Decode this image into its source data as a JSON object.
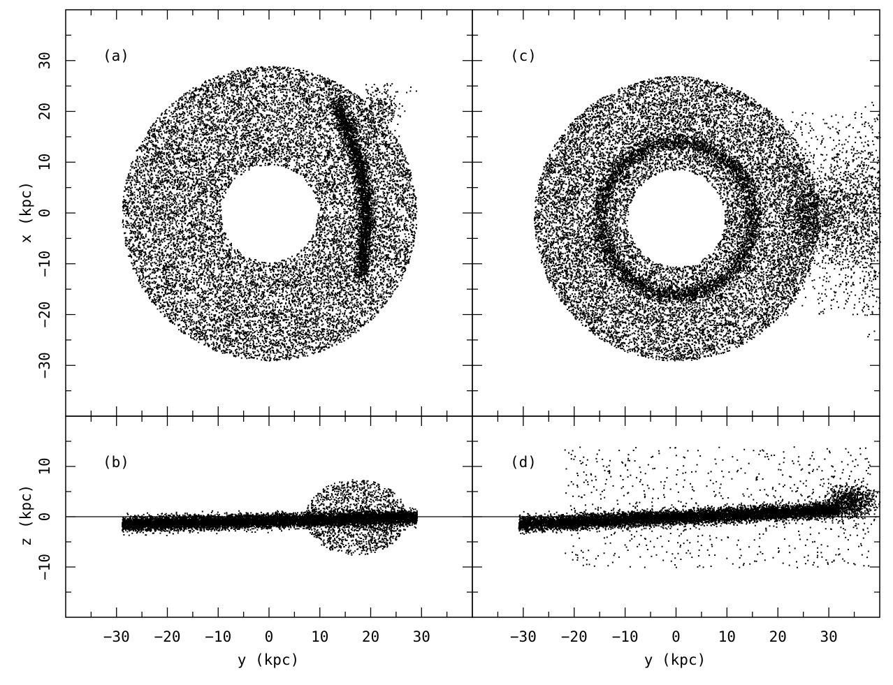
{
  "chart_data": [
    {
      "id": "a",
      "type": "scatter",
      "panel_label": "(a)",
      "view": "face-on",
      "xaxis": "y",
      "yaxis": "x",
      "xlabel": "",
      "ylabel": "x (kpc)",
      "xlim": [
        -40,
        40
      ],
      "ylim": [
        -40,
        40
      ],
      "xticks_labeled": [],
      "yticks_labeled": [
        -30,
        -20,
        -10,
        0,
        10,
        20,
        30
      ],
      "features": {
        "ring": {
          "center": [
            0,
            0
          ],
          "outer_radius": 29,
          "inner_radius": 9.5
        },
        "dense_arm": {
          "from": [
            13,
            22
          ],
          "to": [
            18,
            -12
          ]
        },
        "satellite_clump": {
          "center": [
            22,
            21
          ],
          "extent": [
            [
              17,
              27
            ],
            [
              16,
              26
            ]
          ]
        }
      }
    },
    {
      "id": "b",
      "type": "scatter",
      "panel_label": "(b)",
      "view": "edge-on",
      "xaxis": "y",
      "yaxis": "z",
      "xlabel": "y (kpc)",
      "ylabel": "z (kpc)",
      "xlim": [
        -40,
        40
      ],
      "ylim": [
        -20,
        20
      ],
      "xticks_labeled": [
        -30,
        -20,
        -10,
        0,
        10,
        20,
        30
      ],
      "yticks_labeled": [
        -10,
        0,
        10
      ],
      "reference_line": {
        "z": 0
      },
      "features": {
        "disk": {
          "from": [
            -29,
            -1.4
          ],
          "to": [
            29,
            0
          ],
          "thickness": 1.5
        },
        "satellite_cloud": {
          "center": [
            17,
            0
          ],
          "width": 20,
          "height": 15
        }
      }
    },
    {
      "id": "c",
      "type": "scatter",
      "panel_label": "(c)",
      "view": "face-on",
      "xaxis": "y",
      "yaxis": "x",
      "xlabel": "",
      "ylabel": "",
      "xlim": [
        -40,
        40
      ],
      "ylim": [
        -40,
        40
      ],
      "xticks_labeled": [],
      "yticks_labeled": [],
      "features": {
        "ring": {
          "center": [
            0,
            -1
          ],
          "outer_radius": 28,
          "inner_radius": 9.5
        },
        "inner_ring": {
          "center": [
            0,
            -1
          ],
          "radius": 15
        },
        "tail": {
          "to": [
            40,
            0
          ]
        }
      }
    },
    {
      "id": "d",
      "type": "scatter",
      "panel_label": "(d)",
      "view": "edge-on",
      "xaxis": "y",
      "yaxis": "z",
      "xlabel": "y (kpc)",
      "ylabel": "",
      "xlim": [
        -40,
        40
      ],
      "ylim": [
        -20,
        20
      ],
      "xticks_labeled": [
        -30,
        -20,
        -10,
        0,
        10,
        20,
        30
      ],
      "yticks_labeled": [],
      "reference_line": {
        "z": 0
      },
      "features": {
        "disk": {
          "from": [
            -31,
            -1.4
          ],
          "to": [
            32,
            1.5
          ],
          "thickness": 1.6
        },
        "satellite_clump": {
          "center": [
            34,
            3
          ]
        },
        "halo_spread": {
          "zmin": -10,
          "zmax": 14
        }
      }
    }
  ]
}
